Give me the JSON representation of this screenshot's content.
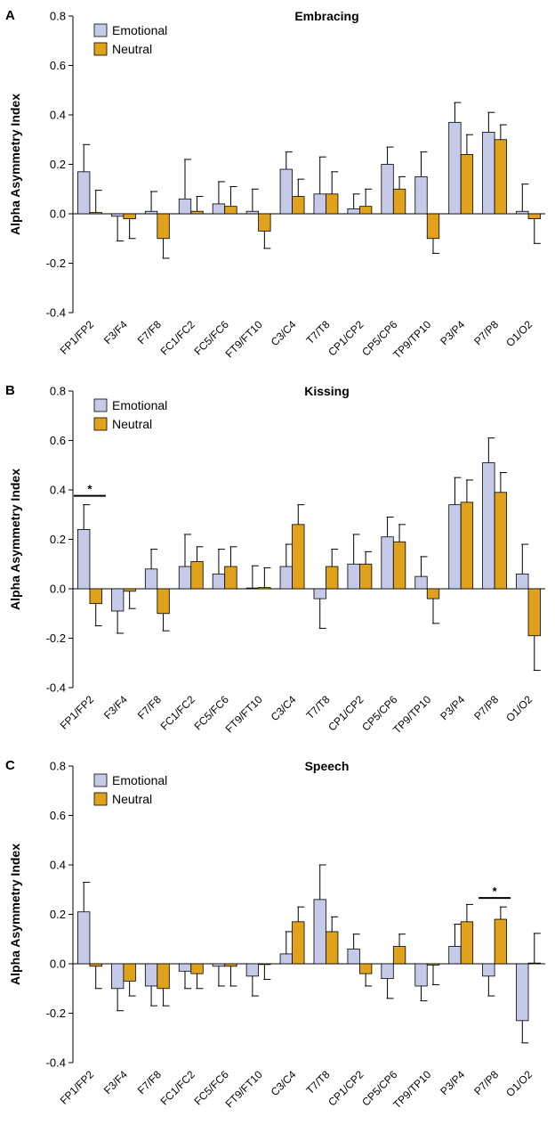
{
  "colors": {
    "emotional": "#c5cae8",
    "neutral": "#e0a21a",
    "edge": "#000000"
  },
  "chart_data": [
    {
      "type": "bar",
      "panel_label": "A",
      "title": "Embracing",
      "ylabel": "Alpha Asymmetry Index",
      "ylim": [
        -0.4,
        0.8
      ],
      "yticks": [
        -0.4,
        -0.2,
        0.0,
        0.2,
        0.4,
        0.6,
        0.8
      ],
      "ytick_labels": [
        "-0.4",
        "-0.2",
        "0.0",
        "0.2",
        "0.4",
        "0.6",
        "0.8"
      ],
      "legend_position": "top-left",
      "categories": [
        "FP1/FP2",
        "F3/F4",
        "F7/F8",
        "FC1/FC2",
        "FC5/FC6",
        "FT9/FT10",
        "C3/C4",
        "T7/T8",
        "CP1/CP2",
        "CP5/CP6",
        "TP9/TP10",
        "P3/P4",
        "P7/P8",
        "O1/O2"
      ],
      "series": [
        {
          "name": "Emotional",
          "values": [
            0.17,
            -0.01,
            0.01,
            0.06,
            0.04,
            0.01,
            0.18,
            0.08,
            0.02,
            0.2,
            0.15,
            0.37,
            0.33,
            0.01
          ],
          "errors": [
            0.11,
            0.1,
            0.08,
            0.16,
            0.09,
            0.09,
            0.07,
            0.15,
            0.06,
            0.07,
            0.1,
            0.08,
            0.08,
            0.11
          ]
        },
        {
          "name": "Neutral",
          "values": [
            0.005,
            -0.02,
            -0.1,
            0.01,
            0.03,
            -0.07,
            0.07,
            0.08,
            0.03,
            0.1,
            -0.1,
            0.24,
            0.3,
            -0.02
          ],
          "errors": [
            0.09,
            0.08,
            0.08,
            0.06,
            0.08,
            0.07,
            0.07,
            0.09,
            0.07,
            0.05,
            0.06,
            0.08,
            0.06,
            0.1
          ]
        }
      ],
      "significance": []
    },
    {
      "type": "bar",
      "panel_label": "B",
      "title": "Kissing",
      "ylabel": "Alpha Asymmetry Index",
      "ylim": [
        -0.4,
        0.8
      ],
      "yticks": [
        -0.4,
        -0.2,
        0.0,
        0.2,
        0.4,
        0.6,
        0.8
      ],
      "ytick_labels": [
        "-0.4",
        "-0.2",
        "0.0",
        "0.2",
        "0.4",
        "0.6",
        "0.8"
      ],
      "legend_position": "top-left",
      "categories": [
        "FP1/FP2",
        "F3/F4",
        "F7/F8",
        "FC1/FC2",
        "FC5/FC6",
        "FT9/FT10",
        "C3/C4",
        "T7/T8",
        "CP1/CP2",
        "CP5/CP6",
        "TP9/TP10",
        "P3/P4",
        "P7/P8",
        "O1/O2"
      ],
      "series": [
        {
          "name": "Emotional",
          "values": [
            0.24,
            -0.09,
            0.08,
            0.09,
            0.06,
            0.003,
            0.09,
            -0.04,
            0.1,
            0.21,
            0.05,
            0.34,
            0.51,
            0.06
          ],
          "errors": [
            0.1,
            0.09,
            0.08,
            0.13,
            0.1,
            0.09,
            0.09,
            0.12,
            0.12,
            0.08,
            0.08,
            0.11,
            0.1,
            0.12
          ]
        },
        {
          "name": "Neutral",
          "values": [
            -0.06,
            -0.01,
            -0.1,
            0.11,
            0.09,
            0.005,
            0.26,
            0.09,
            0.1,
            0.19,
            -0.04,
            0.35,
            0.39,
            -0.19
          ],
          "errors": [
            0.09,
            0.07,
            0.07,
            0.06,
            0.08,
            0.08,
            0.08,
            0.07,
            0.05,
            0.07,
            0.1,
            0.09,
            0.08,
            0.14
          ]
        }
      ],
      "significance": [
        {
          "category_index": 0,
          "label": "*"
        }
      ]
    },
    {
      "type": "bar",
      "panel_label": "C",
      "title": "Speech",
      "ylabel": "Alpha Asymmetry Index",
      "ylim": [
        -0.4,
        0.8
      ],
      "yticks": [
        -0.4,
        -0.2,
        0.0,
        0.2,
        0.4,
        0.6,
        0.8
      ],
      "ytick_labels": [
        "-0.4",
        "-0.2",
        "0.0",
        "0.2",
        "0.4",
        "0.6",
        "0.8"
      ],
      "legend_position": "top-left",
      "categories": [
        "FP1/FP2",
        "F3/F4",
        "F7/F8",
        "FC1/FC2",
        "FC5/FC6",
        "FT9/FT10",
        "C3/C4",
        "T7/T8",
        "CP1/CP2",
        "CP5/CP6",
        "TP9/TP10",
        "P3/P4",
        "P7/P8",
        "O1/O2"
      ],
      "series": [
        {
          "name": "Emotional",
          "values": [
            0.21,
            -0.1,
            -0.09,
            -0.03,
            -0.01,
            -0.05,
            0.04,
            0.26,
            0.06,
            -0.06,
            -0.09,
            0.07,
            -0.05,
            -0.23
          ],
          "errors": [
            0.12,
            0.09,
            0.08,
            0.07,
            0.08,
            0.08,
            0.09,
            0.14,
            0.06,
            0.08,
            0.06,
            0.09,
            0.08,
            0.09
          ]
        },
        {
          "name": "Neutral",
          "values": [
            -0.01,
            -0.07,
            -0.1,
            -0.04,
            -0.01,
            -0.003,
            0.17,
            0.13,
            -0.04,
            0.07,
            -0.005,
            0.17,
            0.18,
            0.003
          ],
          "errors": [
            0.09,
            0.06,
            0.07,
            0.06,
            0.08,
            0.06,
            0.06,
            0.06,
            0.05,
            0.05,
            0.08,
            0.07,
            0.05,
            0.12
          ]
        }
      ],
      "significance": [
        {
          "category_index": 12,
          "label": "*"
        }
      ]
    }
  ]
}
